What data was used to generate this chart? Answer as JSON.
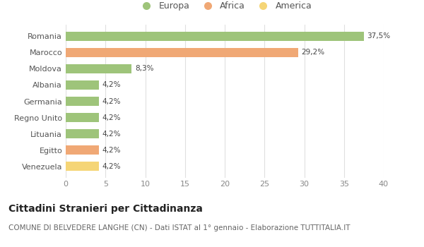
{
  "categories": [
    "Venezuela",
    "Egitto",
    "Lituania",
    "Regno Unito",
    "Germania",
    "Albania",
    "Moldova",
    "Marocco",
    "Romania"
  ],
  "values": [
    4.2,
    4.2,
    4.2,
    4.2,
    4.2,
    4.2,
    8.3,
    29.2,
    37.5
  ],
  "labels": [
    "4,2%",
    "4,2%",
    "4,2%",
    "4,2%",
    "4,2%",
    "4,2%",
    "8,3%",
    "29,2%",
    "37,5%"
  ],
  "colors": [
    "#f5d576",
    "#f0a875",
    "#9ec47a",
    "#9ec47a",
    "#9ec47a",
    "#9ec47a",
    "#9ec47a",
    "#f0a875",
    "#9ec47a"
  ],
  "legend": [
    {
      "label": "Europa",
      "color": "#9ec47a"
    },
    {
      "label": "Africa",
      "color": "#f0a875"
    },
    {
      "label": "America",
      "color": "#f5d576"
    }
  ],
  "xlim": [
    0,
    40
  ],
  "xticks": [
    0,
    5,
    10,
    15,
    20,
    25,
    30,
    35,
    40
  ],
  "title": "Cittadini Stranieri per Cittadinanza",
  "subtitle": "COMUNE DI BELVEDERE LANGHE (CN) - Dati ISTAT al 1° gennaio - Elaborazione TUTTITALIA.IT",
  "bg_color": "#ffffff",
  "grid_color": "#e0e0e0",
  "bar_height": 0.55,
  "label_fontsize": 7.5,
  "title_fontsize": 10,
  "subtitle_fontsize": 7.5,
  "ytick_fontsize": 8,
  "xtick_fontsize": 8
}
